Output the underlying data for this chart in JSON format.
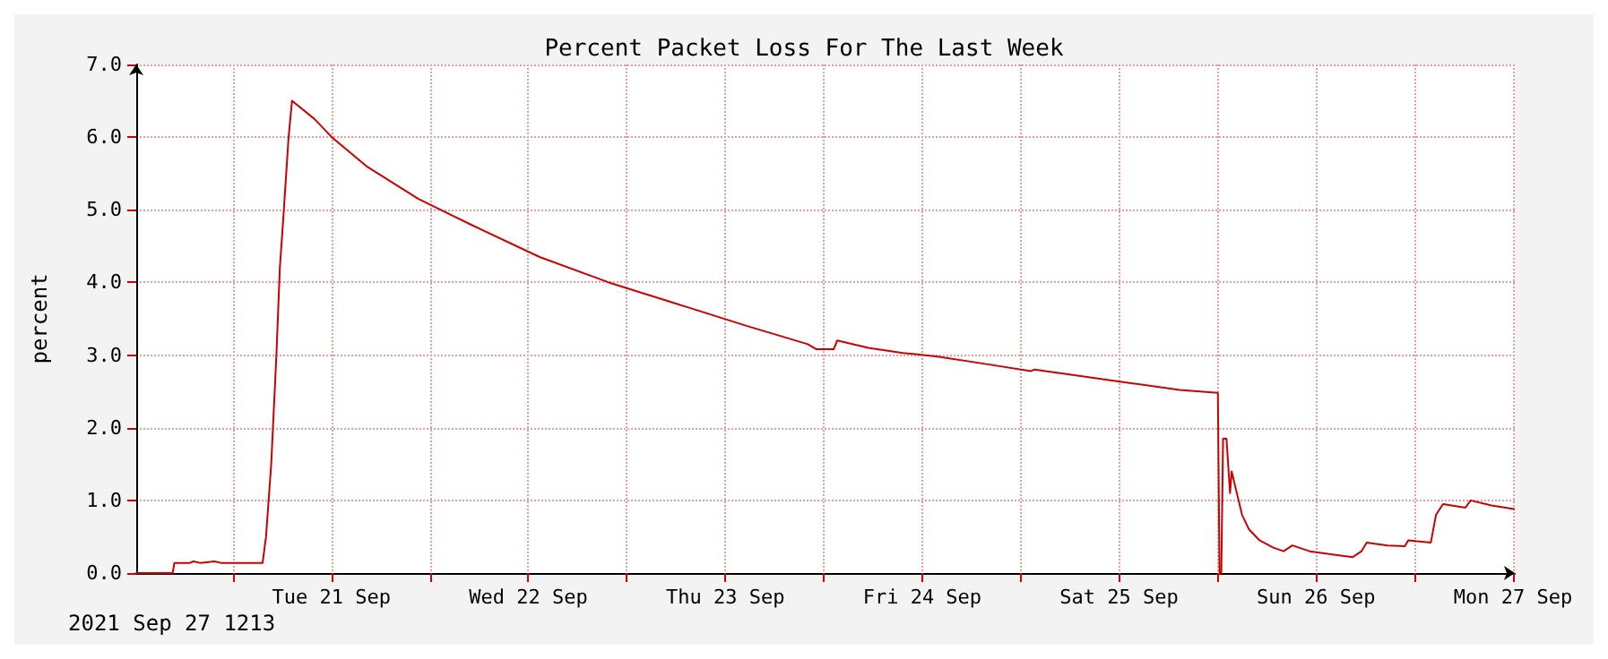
{
  "chart_data": {
    "type": "line",
    "title": "Percent Packet Loss For The Last Week",
    "ylabel": "percent",
    "annotations": [
      "2021 Sep 27 1213"
    ],
    "grid": true,
    "marker": "none",
    "line_style": "solid",
    "xlim": [
      "2021-09-20T12:13",
      "2021-09-27T12:13"
    ],
    "xticks": [
      {
        "value": "2021-09-21T00:00",
        "label": null
      },
      {
        "value": "2021-09-21T12:00",
        "label": "Tue 21 Sep"
      },
      {
        "value": "2021-09-22T00:00",
        "label": null
      },
      {
        "value": "2021-09-22T12:00",
        "label": "Wed 22 Sep"
      },
      {
        "value": "2021-09-23T00:00",
        "label": null
      },
      {
        "value": "2021-09-23T12:00",
        "label": "Thu 23 Sep"
      },
      {
        "value": "2021-09-24T00:00",
        "label": null
      },
      {
        "value": "2021-09-24T12:00",
        "label": "Fri 24 Sep"
      },
      {
        "value": "2021-09-25T00:00",
        "label": null
      },
      {
        "value": "2021-09-25T12:00",
        "label": "Sat 25 Sep"
      },
      {
        "value": "2021-09-26T00:00",
        "label": null
      },
      {
        "value": "2021-09-26T12:00",
        "label": "Sun 26 Sep"
      },
      {
        "value": "2021-09-27T00:00",
        "label": null
      },
      {
        "value": "2021-09-27T12:00",
        "label": "Mon 27 Sep"
      }
    ],
    "ylim": [
      0,
      7
    ],
    "yticks": [
      {
        "value": 0,
        "label": "0.0"
      },
      {
        "value": 1,
        "label": "1.0"
      },
      {
        "value": 2,
        "label": "2.0"
      },
      {
        "value": 3,
        "label": "3.0"
      },
      {
        "value": 4,
        "label": "4.0"
      },
      {
        "value": 5,
        "label": "5.0"
      },
      {
        "value": 6,
        "label": "6.0"
      },
      {
        "value": 7,
        "label": "7.0"
      }
    ],
    "series": [
      {
        "color": "#cc0000",
        "x": [
          "2021-09-20T12:13",
          "2021-09-20T16:39",
          "2021-09-20T16:52",
          "2021-09-20T18:45",
          "2021-09-20T19:11",
          "2021-09-20T20:01",
          "2021-09-20T21:43",
          "2021-09-20T22:33",
          "2021-09-21T03:37",
          "2021-09-21T04:02",
          "2021-09-21T04:40",
          "2021-09-21T05:18",
          "2021-09-21T05:43",
          "2021-09-21T06:09",
          "2021-09-21T06:47",
          "2021-09-21T07:12",
          "2021-09-21T09:56",
          "2021-09-21T12:03",
          "2021-09-21T16:16",
          "2021-09-21T22:36",
          "2021-09-22T04:55",
          "2021-09-22T13:22",
          "2021-09-22T21:48",
          "2021-09-23T06:14",
          "2021-09-23T14:40",
          "2021-09-23T22:03",
          "2021-09-23T23:07",
          "2021-09-24T01:13",
          "2021-09-24T01:38",
          "2021-09-24T05:26",
          "2021-09-24T09:39",
          "2021-09-24T13:52",
          "2021-09-24T20:11",
          "2021-09-25T01:15",
          "2021-09-25T01:41",
          "2021-09-25T06:44",
          "2021-09-25T13:04",
          "2021-09-25T19:23",
          "2021-09-26T00:02",
          "2021-09-26T00:14",
          "2021-09-26T00:27",
          "2021-09-26T00:40",
          "2021-09-26T01:05",
          "2021-09-26T01:31",
          "2021-09-26T01:43",
          "2021-09-26T02:08",
          "2021-09-26T02:59",
          "2021-09-26T03:50",
          "2021-09-26T05:06",
          "2021-09-26T06:47",
          "2021-09-26T08:03",
          "2021-09-26T09:06",
          "2021-09-26T11:13",
          "2021-09-26T14:23",
          "2021-09-26T16:29",
          "2021-09-26T17:32",
          "2021-09-26T18:10",
          "2021-09-26T20:42",
          "2021-09-26T22:49",
          "2021-09-26T23:14",
          "2021-09-27T01:59",
          "2021-09-27T02:37",
          "2021-09-27T03:28",
          "2021-09-27T06:12",
          "2021-09-27T06:50",
          "2021-09-27T09:22",
          "2021-09-27T12:07"
        ],
        "values": [
          0,
          0,
          0.14,
          0.14,
          0.16,
          0.14,
          0.16,
          0.14,
          0.14,
          0.5,
          1.5,
          3.0,
          4.2,
          4.9,
          6.0,
          6.5,
          6.25,
          6.0,
          5.6,
          5.15,
          4.8,
          4.35,
          4.0,
          3.7,
          3.4,
          3.15,
          3.08,
          3.08,
          3.2,
          3.1,
          3.03,
          2.98,
          2.87,
          2.78,
          2.8,
          2.72,
          2.62,
          2.52,
          2.48,
          0,
          0,
          1.85,
          1.85,
          1.1,
          1.4,
          1.2,
          0.8,
          0.6,
          0.45,
          0.35,
          0.3,
          0.38,
          0.3,
          0.25,
          0.22,
          0.3,
          0.42,
          0.38,
          0.37,
          0.45,
          0.42,
          0.8,
          0.95,
          0.9,
          1.0,
          0.93,
          0.88
        ]
      }
    ]
  }
}
